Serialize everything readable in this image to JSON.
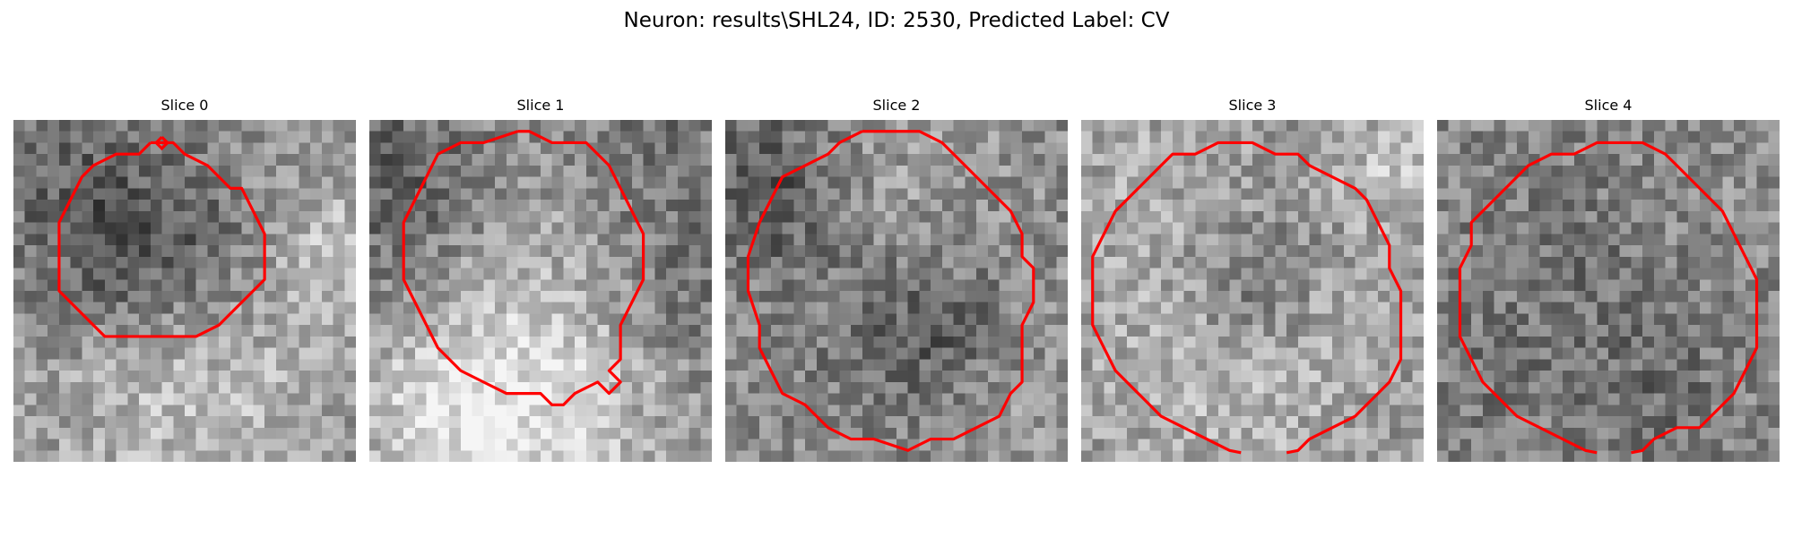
{
  "figure": {
    "title": "Neuron: results\\SHL24, ID: 2530, Predicted Label: CV"
  },
  "panels": [
    {
      "title": "Slice 0"
    },
    {
      "title": "Slice 1"
    },
    {
      "title": "Slice 2"
    },
    {
      "title": "Slice 3"
    },
    {
      "title": "Slice 4"
    }
  ],
  "colors": {
    "contour": "#ff0000",
    "background": "#ffffff"
  }
}
